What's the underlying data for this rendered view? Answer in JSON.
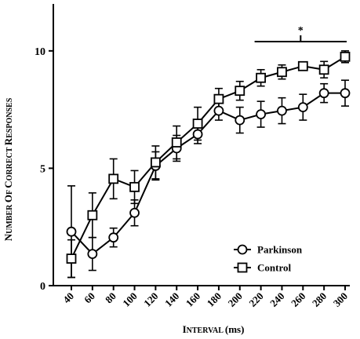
{
  "chart_data": {
    "type": "line",
    "xlabel": "Interval (ms)",
    "ylabel": "Number of Correct Responses",
    "x": [
      40,
      60,
      80,
      100,
      120,
      140,
      160,
      180,
      200,
      220,
      240,
      260,
      280,
      300
    ],
    "x_tick_labels": [
      "40",
      "60",
      "80",
      "100",
      "120",
      "140",
      "160",
      "180",
      "200",
      "220",
      "240",
      "260",
      "280",
      "300"
    ],
    "ylim": [
      0,
      12
    ],
    "y_ticks": [
      0,
      5,
      10
    ],
    "y_tick_labels": [
      "0",
      "5",
      "10"
    ],
    "grid": false,
    "legend_position": "bottom-right",
    "significance_marker": "*",
    "significance_range": [
      220,
      300
    ],
    "series": [
      {
        "name": "Parkinson",
        "marker": "circle",
        "values": [
          2.3,
          1.35,
          2.05,
          3.1,
          5.1,
          5.85,
          6.45,
          7.45,
          7.05,
          7.3,
          7.45,
          7.6,
          8.2,
          8.2
        ],
        "errors": [
          1.95,
          0.7,
          0.4,
          0.55,
          0.6,
          0.55,
          0.4,
          0.4,
          0.55,
          0.55,
          0.55,
          0.55,
          0.4,
          0.55
        ]
      },
      {
        "name": "Control",
        "marker": "square",
        "values": [
          1.15,
          3.0,
          4.55,
          4.2,
          5.25,
          6.1,
          6.9,
          7.95,
          8.3,
          8.85,
          9.1,
          9.35,
          9.2,
          9.75
        ],
        "errors": [
          0.8,
          0.95,
          0.85,
          0.7,
          0.7,
          0.7,
          0.7,
          0.45,
          0.4,
          0.35,
          0.3,
          0.15,
          0.35,
          0.25
        ]
      }
    ]
  }
}
